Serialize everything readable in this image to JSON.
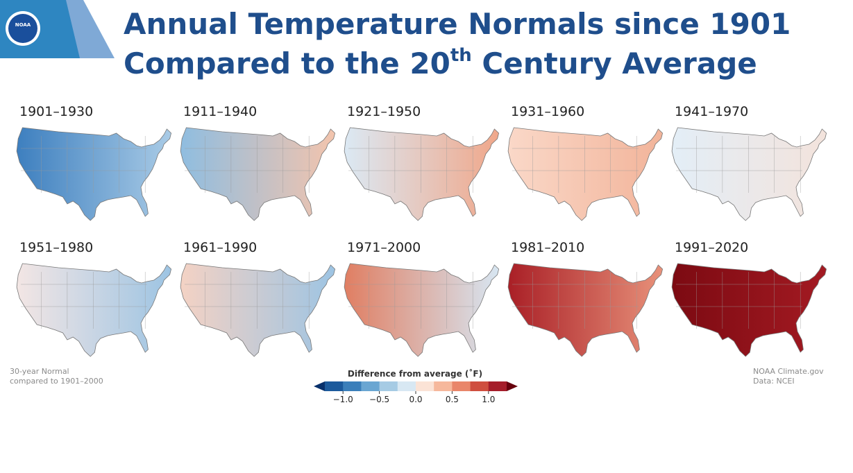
{
  "header": {
    "logo_text": "NOAA",
    "title_line1": "Annual Temperature Normals since 1901",
    "title_line2": {
      "before": "Compared to the 20",
      "sup": "th",
      "after": " Century Average"
    }
  },
  "maps": [
    {
      "label": "1901–1930",
      "colors": [
        "#3d7fbf",
        "#a9cbe6"
      ]
    },
    {
      "label": "1911–1940",
      "colors": [
        "#8fbde0",
        "#f3c4ad"
      ]
    },
    {
      "label": "1921–1950",
      "colors": [
        "#dbe9f4",
        "#f0a78a"
      ]
    },
    {
      "label": "1931–1960",
      "colors": [
        "#fad8c8",
        "#f2b49a"
      ]
    },
    {
      "label": "1941–1970",
      "colors": [
        "#e3eef7",
        "#f3e3dc"
      ]
    },
    {
      "label": "1951–1980",
      "colors": [
        "#f3e6e4",
        "#9dc4e3"
      ]
    },
    {
      "label": "1961–1990",
      "colors": [
        "#f4d2c4",
        "#9dc4e3"
      ]
    },
    {
      "label": "1971–2000",
      "colors": [
        "#e07e62",
        "#d7e6f2"
      ]
    },
    {
      "label": "1981–2010",
      "colors": [
        "#a91f26",
        "#e8917a"
      ]
    },
    {
      "label": "1991–2020",
      "colors": [
        "#7c0a12",
        "#a31a22"
      ]
    }
  ],
  "footnote_left": [
    "30-year Normal",
    "compared to 1901–2000"
  ],
  "footnote_right": [
    "NOAA Climate.gov",
    "Data: NCEI"
  ],
  "legend": {
    "title": "Difference from average (˚F)",
    "lim": [
      -1.25,
      1.25
    ],
    "colors": [
      "#1c5a9c",
      "#3b7fba",
      "#6aa6d2",
      "#a6cbe4",
      "#d8e8f3",
      "#fbe3d6",
      "#f6b89c",
      "#e9866a",
      "#cf4e3f",
      "#a51d2a"
    ],
    "extend_colors": [
      "#08306b",
      "#67000d"
    ],
    "ticks": [
      {
        "value": -1.0,
        "label": "−1.0"
      },
      {
        "value": -0.5,
        "label": "−0.5"
      },
      {
        "value": 0.0,
        "label": "0.0"
      },
      {
        "value": 0.5,
        "label": "0.5"
      },
      {
        "value": 1.0,
        "label": "1.0"
      }
    ]
  }
}
